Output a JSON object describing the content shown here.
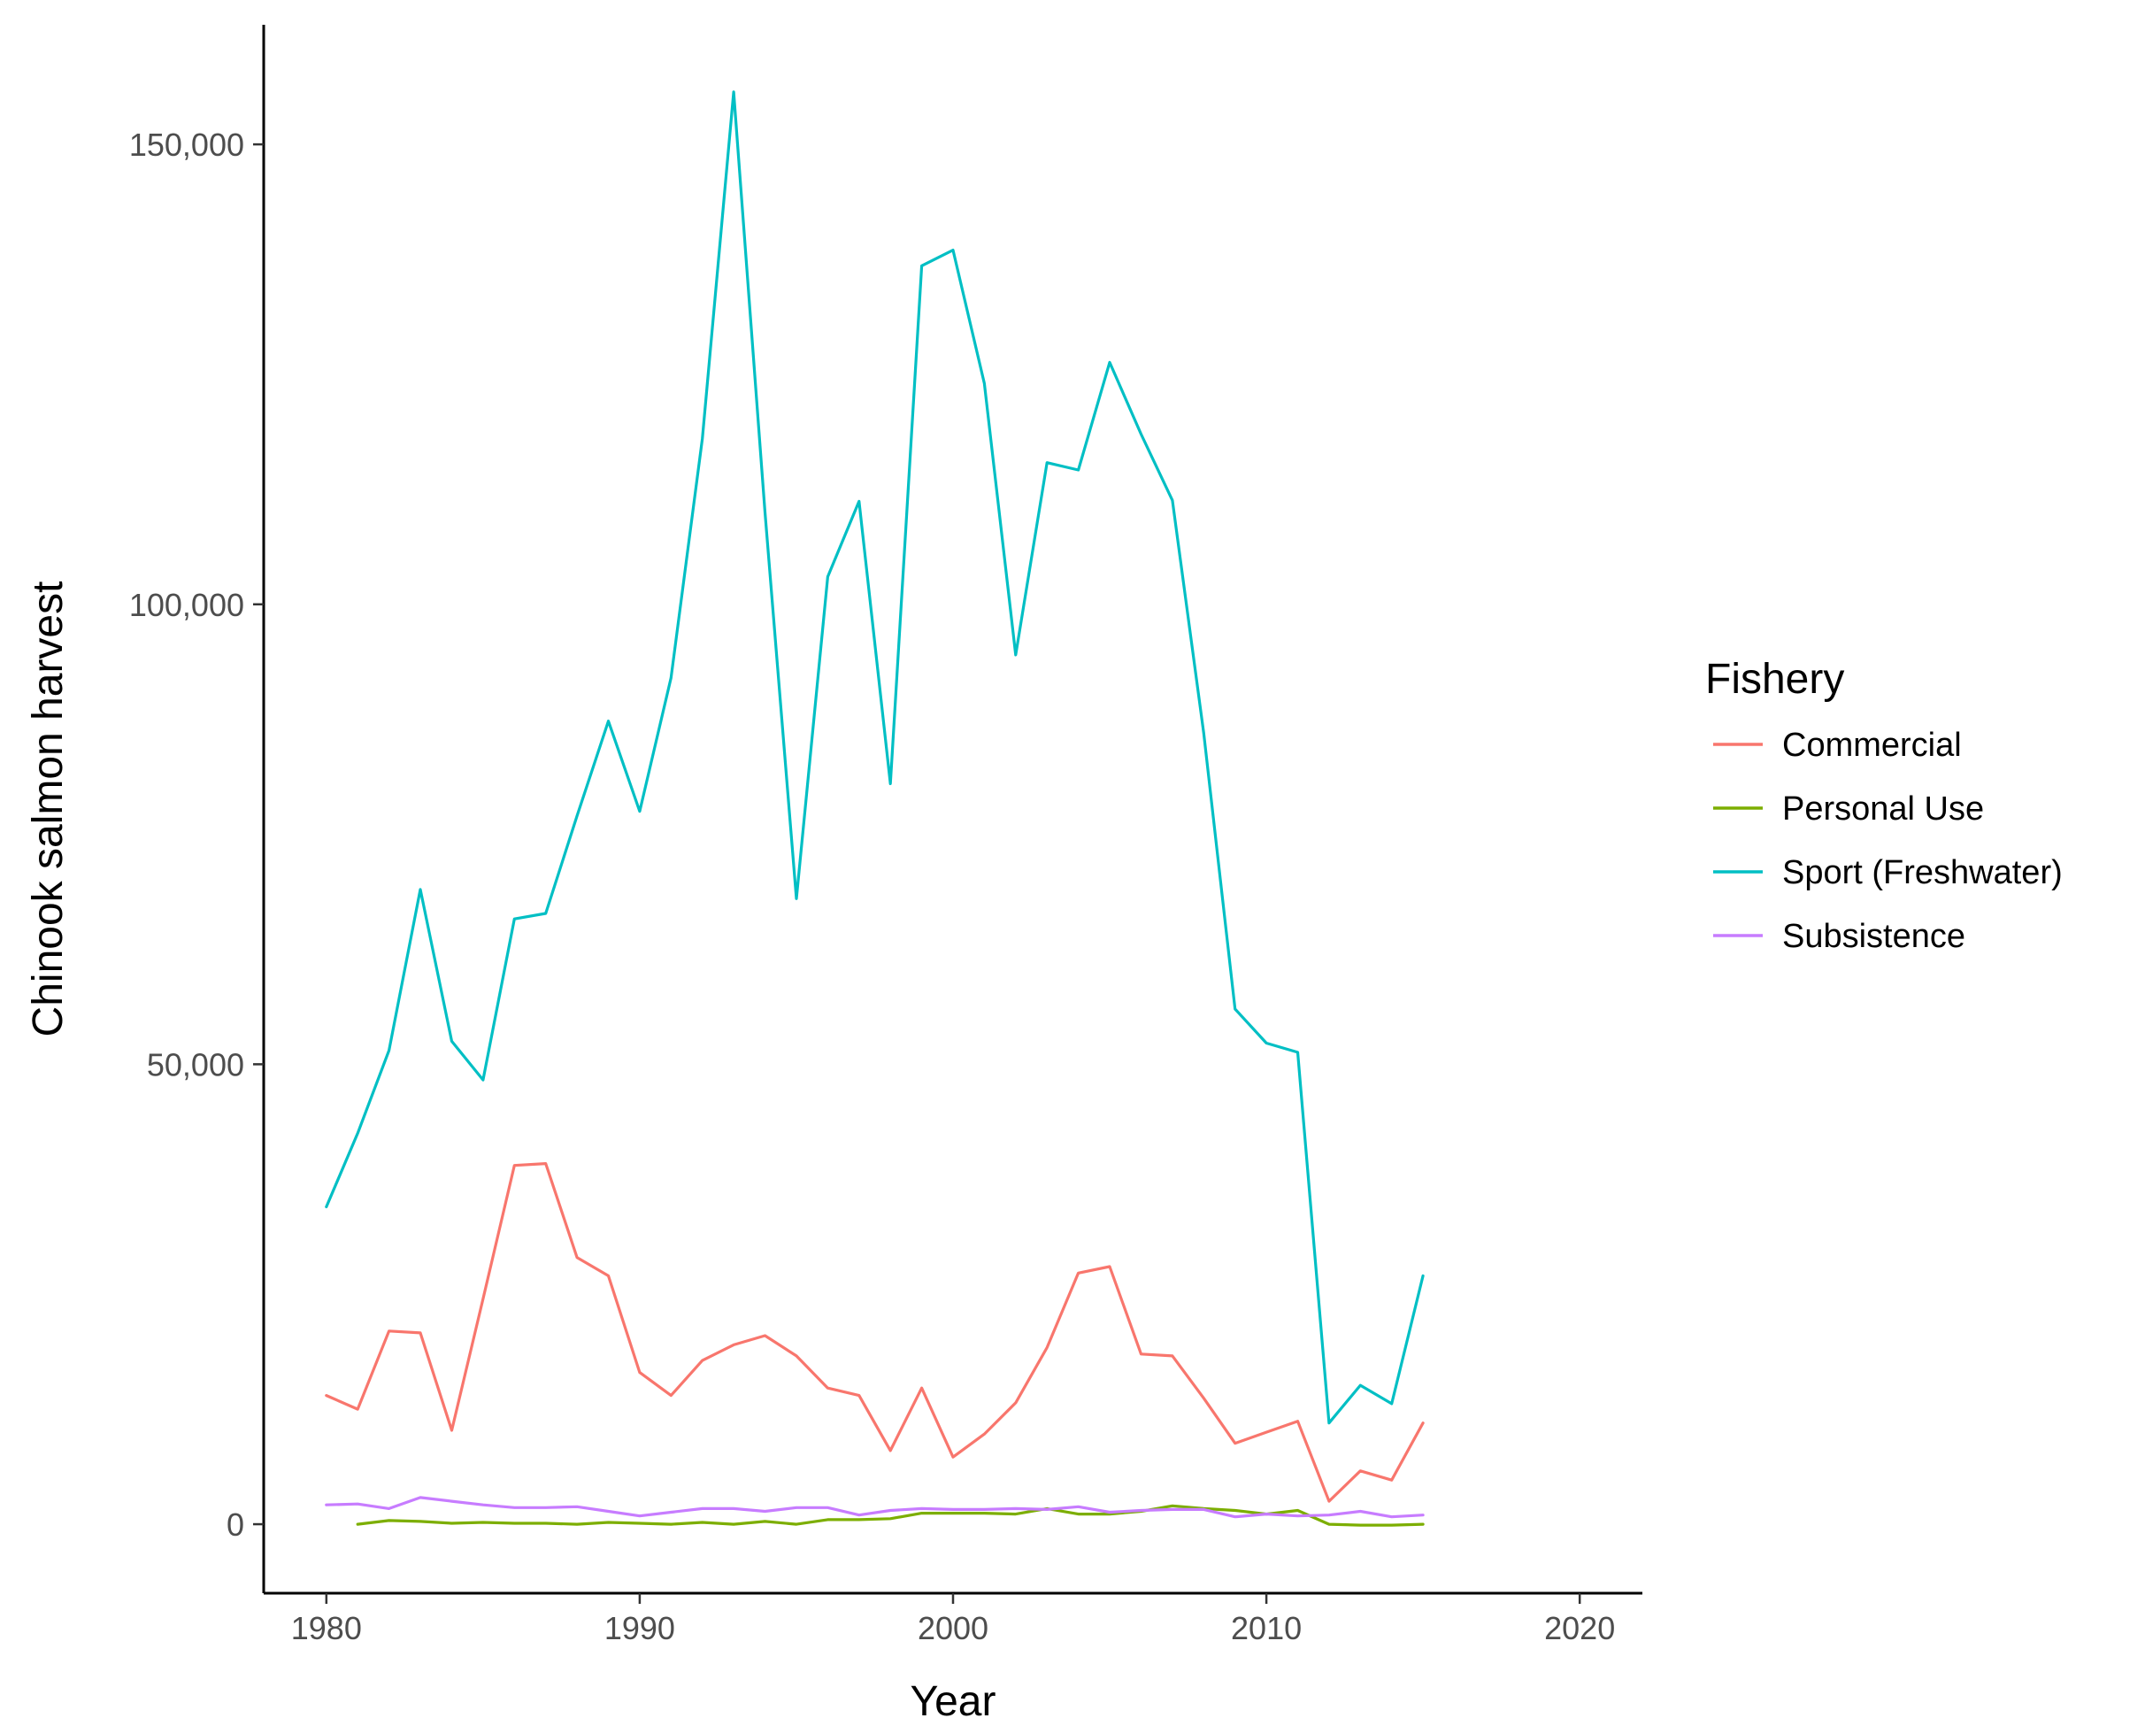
{
  "chart_data": {
    "type": "line",
    "xlabel": "Year",
    "ylabel": "Chinook salmon harvest",
    "xlim": [
      1978,
      2022
    ],
    "ylim": [
      -7500,
      163000
    ],
    "x_ticks": [
      1980,
      1990,
      2000,
      2010,
      2020
    ],
    "y_ticks": [
      0,
      50000,
      100000,
      150000
    ],
    "y_tick_labels": [
      "0",
      "50,000",
      "100,000",
      "150,000"
    ],
    "grid": false,
    "legend": {
      "title": "Fishery",
      "position": "right"
    },
    "series": [
      {
        "name": "Commercial",
        "color": "#F8766D",
        "x": [
          1980,
          1981,
          1982,
          1983,
          1984,
          1985,
          1986,
          1987,
          1988,
          1989,
          1990,
          1991,
          1992,
          1993,
          1994,
          1995,
          1996,
          1997,
          1998,
          1999,
          2000,
          2001,
          2002,
          2003,
          2004,
          2005,
          2006,
          2007,
          2008,
          2009,
          2010,
          2011,
          2012,
          2013,
          2014,
          2015
        ],
        "y": [
          14000,
          12500,
          21000,
          20800,
          10200,
          24500,
          39000,
          39200,
          29000,
          27000,
          16500,
          14000,
          17800,
          19500,
          20500,
          18300,
          14800,
          14000,
          8000,
          14800,
          7300,
          9800,
          13200,
          19200,
          27300,
          28000,
          18500,
          18300,
          13700,
          8800,
          10000,
          11200,
          2500,
          5800,
          4800,
          11000
        ]
      },
      {
        "name": "Personal Use",
        "color": "#7CAE00",
        "x": [
          1981,
          1982,
          1983,
          1984,
          1985,
          1986,
          1987,
          1988,
          1989,
          1990,
          1991,
          1992,
          1993,
          1994,
          1995,
          1996,
          1997,
          1998,
          1999,
          2000,
          2001,
          2002,
          2003,
          2004,
          2005,
          2006,
          2007,
          2008,
          2009,
          2010,
          2011,
          2012,
          2013,
          2014,
          2015
        ],
        "y": [
          0,
          400,
          300,
          100,
          200,
          100,
          100,
          0,
          200,
          100,
          0,
          200,
          0,
          300,
          0,
          500,
          500,
          600,
          1200,
          1200,
          1200,
          1100,
          1700,
          1100,
          1100,
          1400,
          2000,
          1700,
          1500,
          1100,
          1500,
          0,
          -100,
          -100,
          0
        ]
      },
      {
        "name": "Sport (Freshwater)",
        "color": "#00BFC4",
        "x": [
          1980,
          1981,
          1982,
          1983,
          1984,
          1985,
          1986,
          1987,
          1988,
          1989,
          1990,
          1991,
          1992,
          1993,
          1994,
          1995,
          1996,
          1997,
          1998,
          1999,
          2000,
          2001,
          2002,
          2003,
          2004,
          2005,
          2006,
          2007,
          2008,
          2009,
          2010,
          2011,
          2012,
          2013,
          2014,
          2015
        ],
        "y": [
          34500,
          42500,
          51500,
          69000,
          52500,
          48300,
          65800,
          66400,
          77000,
          87300,
          77500,
          92000,
          118000,
          155700,
          110000,
          68000,
          103000,
          111200,
          80500,
          136800,
          138500,
          124000,
          94500,
          115400,
          114600,
          126300,
          118500,
          111300,
          86000,
          56000,
          52300,
          51300,
          11000,
          15100,
          13100,
          27000
        ]
      },
      {
        "name": "Subsistence",
        "color": "#C77CFF",
        "x": [
          1980,
          1981,
          1982,
          1983,
          1984,
          1985,
          1986,
          1987,
          1988,
          1989,
          1990,
          1991,
          1992,
          1993,
          1994,
          1995,
          1996,
          1997,
          1998,
          1999,
          2000,
          2001,
          2002,
          2003,
          2004,
          2005,
          2006,
          2007,
          2008,
          2009,
          2010,
          2011,
          2012,
          2013,
          2014,
          2015
        ],
        "y": [
          2100,
          2200,
          1700,
          2900,
          2500,
          2100,
          1800,
          1800,
          1900,
          1400,
          900,
          1300,
          1700,
          1700,
          1400,
          1800,
          1800,
          1000,
          1500,
          1700,
          1600,
          1600,
          1700,
          1600,
          1900,
          1300,
          1500,
          1600,
          1600,
          800,
          1100,
          900,
          1000,
          1400,
          800,
          1000
        ]
      }
    ]
  }
}
